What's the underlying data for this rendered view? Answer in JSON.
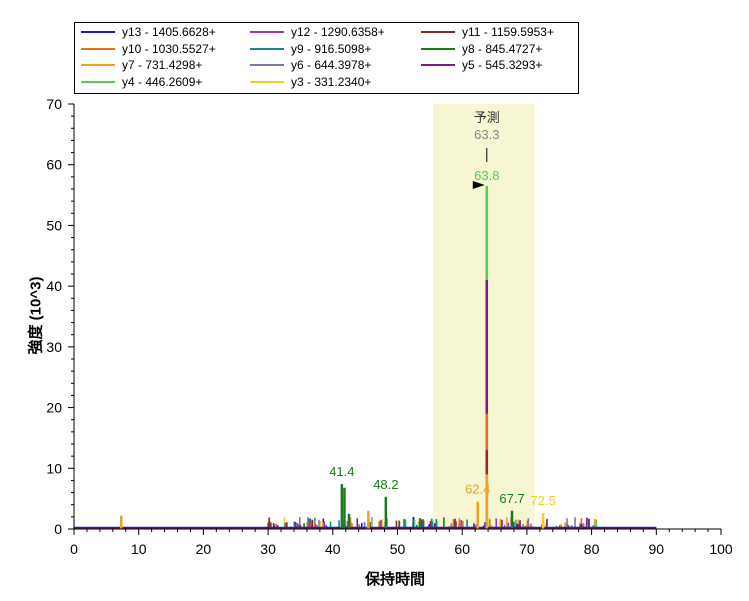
{
  "chart_data": {
    "type": "line",
    "title": "",
    "xlabel": "保持時間",
    "ylabel": "強度 (10^3)",
    "xlim": [
      0,
      100
    ],
    "ylim": [
      0,
      70
    ],
    "x_ticks": [
      "0",
      "10",
      "20",
      "30",
      "40",
      "50",
      "60",
      "70",
      "80",
      "90",
      "100"
    ],
    "y_ticks": [
      "0",
      "10",
      "20",
      "30",
      "40",
      "50",
      "60",
      "70"
    ],
    "legend_position": "top",
    "series": [
      {
        "name": "y13 - 1405.6628+",
        "color": "#1a1acc"
      },
      {
        "name": "y12 - 1290.6358+",
        "color": "#9933cc"
      },
      {
        "name": "y11 - 1159.5953+",
        "color": "#8b2a2a"
      },
      {
        "name": "y10 - 1030.5527+",
        "color": "#e07020"
      },
      {
        "name": "y9 - 916.5098+",
        "color": "#138a8a"
      },
      {
        "name": "y8 - 845.4727+",
        "color": "#1a7a1a"
      },
      {
        "name": "y7 - 731.4298+",
        "color": "#f0a020"
      },
      {
        "name": "y6 - 644.3978+",
        "color": "#7a7aa8"
      },
      {
        "name": "y5 - 545.3293+",
        "color": "#7a1a7a"
      },
      {
        "name": "y4 - 446.2609+",
        "color": "#55cc55"
      },
      {
        "name": "y3 - 331.2340+",
        "color": "#f0d020"
      }
    ],
    "peaks": [
      {
        "series": "y4 - 446.2609+",
        "x": 63.8,
        "y": 56.5
      },
      {
        "series": "y5 - 545.3293+",
        "x": 63.8,
        "y": 41.0
      },
      {
        "series": "y10 - 1030.5527+",
        "x": 63.8,
        "y": 19.0
      },
      {
        "series": "y11 - 1159.5953+",
        "x": 63.8,
        "y": 13.0
      },
      {
        "series": "y7 - 731.4298+",
        "x": 63.8,
        "y": 9.0
      },
      {
        "series": "y8 - 845.4727+",
        "x": 41.4,
        "y": 7.4
      },
      {
        "series": "y8 - 845.4727+",
        "x": 41.8,
        "y": 6.8
      },
      {
        "series": "y8 - 845.4727+",
        "x": 48.2,
        "y": 5.3
      },
      {
        "series": "y7 - 731.4298+",
        "x": 62.4,
        "y": 4.5
      },
      {
        "series": "y8 - 845.4727+",
        "x": 67.7,
        "y": 3.0
      },
      {
        "series": "y3 - 331.2340+",
        "x": 72.5,
        "y": 2.6
      },
      {
        "series": "y7 - 731.4298+",
        "x": 7.3,
        "y": 2.2
      },
      {
        "series": "y7 - 731.4298+",
        "x": 45.5,
        "y": 3.0
      },
      {
        "series": "y8 - 845.4727+",
        "x": 42.5,
        "y": 2.5
      }
    ],
    "annotations": [
      {
        "text": "41.4",
        "x": 41.4,
        "y": 7.4,
        "color": "#1a7a1a"
      },
      {
        "text": "48.2",
        "x": 48.2,
        "y": 5.3,
        "color": "#1a7a1a"
      },
      {
        "text": "63.8",
        "x": 63.8,
        "y": 56.5,
        "color": "#55cc55"
      },
      {
        "text": "62.4",
        "x": 62.4,
        "y": 4.5,
        "color": "#f0a020"
      },
      {
        "text": "67.7",
        "x": 67.7,
        "y": 3.0,
        "color": "#1a7a1a"
      },
      {
        "text": "72.5",
        "x": 72.5,
        "y": 2.6,
        "color": "#f0d020"
      }
    ],
    "prediction": {
      "label": "予測",
      "value": "63.3",
      "window": [
        55.5,
        71.2
      ]
    }
  }
}
